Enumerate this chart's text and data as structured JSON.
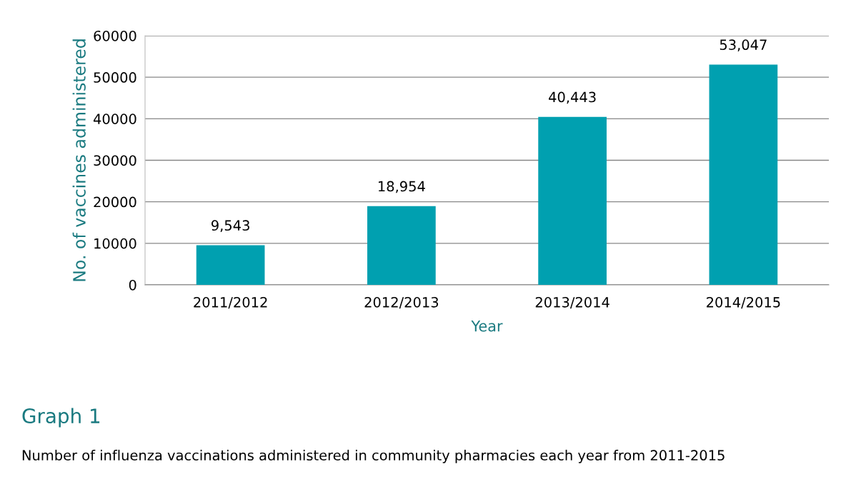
{
  "chart_data": {
    "type": "bar",
    "title": "Graph 1",
    "xlabel": "Year",
    "ylabel": "No. of vaccines administered",
    "annotations": [
      "Number of influenza vaccinations administered in community pharmacies each year from 2011-2015"
    ],
    "categories": [
      "2011/2012",
      "2012/2013",
      "2013/2014",
      "2014/2015"
    ],
    "values": [
      9543,
      18954,
      40443,
      53047
    ],
    "value_labels": [
      "9,543",
      "18,954",
      "40,443",
      "53,047"
    ],
    "color": "#00a0b0",
    "ylim": [
      0,
      60000
    ],
    "yticks": [
      0,
      10000,
      20000,
      30000,
      40000,
      50000,
      60000
    ],
    "grid": "y"
  }
}
